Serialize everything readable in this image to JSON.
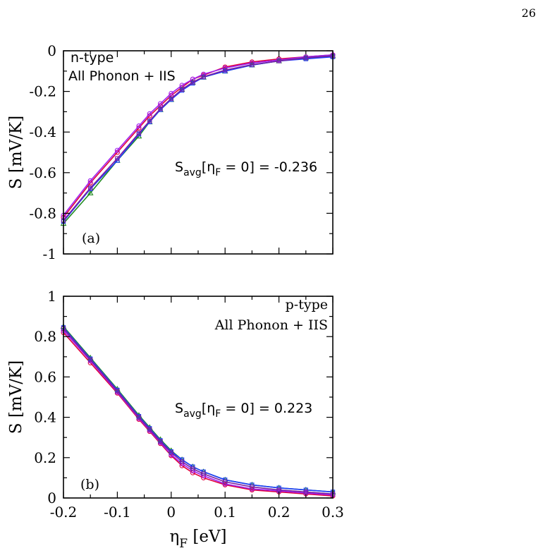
{
  "page_number": "26",
  "xlabel_main": "η",
  "xlabel_sub": "F",
  "xlabel_unit": " [eV]",
  "chart_data": [
    {
      "type": "line",
      "panel_label": "(a)",
      "annotation_line1": "n-type",
      "annotation_line2": "All Phonon + IIS",
      "savg_label_main": "S",
      "savg_label_sub": "avg",
      "savg_label_bracket_open": "[η",
      "savg_label_bracket_sub": "F",
      "savg_label_rest": " = 0] = -0.236",
      "ylabel": "S  [mV/K]",
      "xlim": [
        -0.2,
        0.3
      ],
      "ylim": [
        -1,
        0
      ],
      "yticks": [
        0,
        -0.2,
        -0.4,
        -0.6,
        -0.8,
        -1
      ],
      "ytick_labels": [
        "0",
        "-0.2",
        "-0.4",
        "-0.6",
        "-0.8",
        "-1"
      ],
      "x": [
        -0.2,
        -0.15,
        -0.1,
        -0.06,
        -0.04,
        -0.02,
        0,
        0.02,
        0.04,
        0.06,
        0.1,
        0.15,
        0.2,
        0.25,
        0.3
      ],
      "series": [
        {
          "color": "#e0003c",
          "marker": "circle",
          "values": [
            -0.82,
            -0.65,
            -0.5,
            -0.38,
            -0.32,
            -0.27,
            -0.22,
            -0.18,
            -0.14,
            -0.12,
            -0.08,
            -0.055,
            -0.04,
            -0.03,
            -0.02
          ]
        },
        {
          "color": "#a020f0",
          "marker": "circle",
          "values": [
            -0.81,
            -0.64,
            -0.49,
            -0.37,
            -0.31,
            -0.26,
            -0.21,
            -0.17,
            -0.14,
            -0.115,
            -0.085,
            -0.06,
            -0.045,
            -0.03,
            -0.02
          ]
        },
        {
          "color": "#228b22",
          "marker": "triangle",
          "values": [
            -0.85,
            -0.7,
            -0.54,
            -0.42,
            -0.35,
            -0.29,
            -0.24,
            -0.19,
            -0.155,
            -0.13,
            -0.1,
            -0.07,
            -0.05,
            -0.035,
            -0.025
          ]
        },
        {
          "color": "#1e3cff",
          "marker": "square",
          "values": [
            -0.84,
            -0.68,
            -0.54,
            -0.41,
            -0.35,
            -0.29,
            -0.24,
            -0.195,
            -0.16,
            -0.13,
            -0.1,
            -0.07,
            -0.05,
            -0.04,
            -0.03
          ]
        },
        {
          "color": "#7a1fa2",
          "marker": "square",
          "values": [
            -0.835,
            -0.675,
            -0.53,
            -0.405,
            -0.345,
            -0.285,
            -0.235,
            -0.19,
            -0.155,
            -0.128,
            -0.095,
            -0.068,
            -0.05,
            -0.035,
            -0.025
          ]
        }
      ]
    },
    {
      "type": "line",
      "panel_label": "(b)",
      "annotation_line1": "p-type",
      "annotation_line2": "All Phonon + IIS",
      "savg_label_main": "S",
      "savg_label_sub": "avg",
      "savg_label_bracket_open": "[η",
      "savg_label_bracket_sub": "F",
      "savg_label_rest": " = 0] =  0.223",
      "ylabel": "S  [mV/K]",
      "xlim": [
        -0.2,
        0.3
      ],
      "ylim": [
        0,
        1
      ],
      "yticks": [
        0,
        0.2,
        0.4,
        0.6,
        0.8,
        1
      ],
      "ytick_labels": [
        "0",
        "0.2",
        "0.4",
        "0.6",
        "0.8",
        "1"
      ],
      "xticks": [
        -0.2,
        -0.1,
        0,
        0.1,
        0.2,
        0.3
      ],
      "xtick_labels": [
        "-0.2",
        "-0.1",
        "0",
        "0.1",
        "0.2",
        "0.3"
      ],
      "x": [
        -0.2,
        -0.15,
        -0.1,
        -0.06,
        -0.04,
        -0.02,
        0,
        0.02,
        0.04,
        0.06,
        0.1,
        0.15,
        0.2,
        0.25,
        0.3
      ],
      "series": [
        {
          "color": "#e0003c",
          "marker": "circle",
          "values": [
            0.82,
            0.67,
            0.52,
            0.39,
            0.33,
            0.27,
            0.21,
            0.16,
            0.125,
            0.1,
            0.065,
            0.04,
            0.03,
            0.02,
            0.01
          ]
        },
        {
          "color": "#a020f0",
          "marker": "circle",
          "values": [
            0.83,
            0.68,
            0.525,
            0.395,
            0.335,
            0.275,
            0.215,
            0.17,
            0.135,
            0.11,
            0.07,
            0.045,
            0.035,
            0.025,
            0.015
          ]
        },
        {
          "color": "#228b22",
          "marker": "triangle",
          "values": [
            0.85,
            0.695,
            0.54,
            0.41,
            0.35,
            0.29,
            0.235,
            0.19,
            0.155,
            0.13,
            0.09,
            0.065,
            0.05,
            0.04,
            0.03
          ]
        },
        {
          "color": "#1e3cff",
          "marker": "square",
          "values": [
            0.845,
            0.69,
            0.535,
            0.405,
            0.345,
            0.285,
            0.23,
            0.19,
            0.155,
            0.13,
            0.09,
            0.065,
            0.05,
            0.04,
            0.03
          ]
        },
        {
          "color": "#7a1fa2",
          "marker": "square",
          "values": [
            0.84,
            0.685,
            0.53,
            0.4,
            0.34,
            0.28,
            0.225,
            0.18,
            0.145,
            0.12,
            0.08,
            0.055,
            0.04,
            0.03,
            0.02
          ]
        }
      ]
    }
  ]
}
